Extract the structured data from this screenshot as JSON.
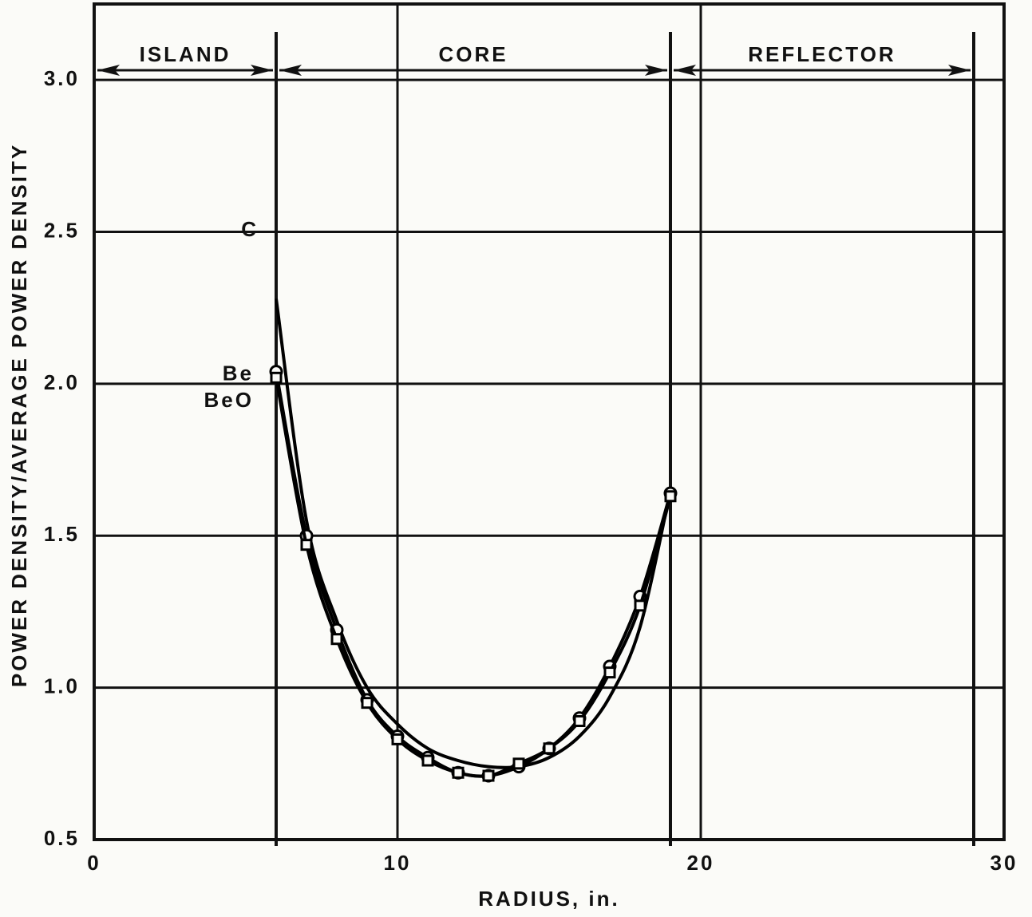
{
  "chart_data": {
    "type": "line",
    "x_label": "RADIUS, in.",
    "y_label": "POWER DENSITY/AVERAGE POWER DENSITY",
    "xlim": [
      0,
      30
    ],
    "ylim": [
      0.5,
      3.25
    ],
    "xticks": [
      0,
      10,
      20,
      30
    ],
    "yticks": [
      0.5,
      {
        "value": 1,
        "label": "1.0"
      },
      1.5,
      {
        "value": 2,
        "label": "2.0"
      },
      2.5,
      {
        "value": 3,
        "label": "3.0"
      }
    ],
    "grid": true,
    "regions": [
      {
        "label": "ISLAND",
        "start": 0,
        "end": 6
      },
      {
        "label": "CORE",
        "start": 6,
        "end": 19
      },
      {
        "label": "REFLECTOR",
        "start": 19,
        "end": 29
      }
    ],
    "x": [
      6,
      7,
      8,
      9,
      10,
      11,
      12,
      13,
      14,
      15,
      16,
      17,
      18,
      19
    ],
    "series": [
      {
        "name": "C",
        "color": "#000000",
        "marker": "none",
        "values": [
          2.28,
          1.55,
          1.22,
          1.0,
          0.88,
          0.8,
          0.76,
          0.74,
          0.74,
          0.77,
          0.84,
          0.97,
          1.2,
          1.65
        ]
      },
      {
        "name": "Be",
        "color": "#000000",
        "marker": "circle",
        "values": [
          2.04,
          1.5,
          1.19,
          0.96,
          0.84,
          0.77,
          0.72,
          0.71,
          0.74,
          0.8,
          0.9,
          1.07,
          1.3,
          1.64
        ]
      },
      {
        "name": "BeO",
        "color": "#000000",
        "marker": "square",
        "values": [
          2.02,
          1.47,
          1.16,
          0.95,
          0.83,
          0.76,
          0.72,
          0.71,
          0.75,
          0.8,
          0.89,
          1.05,
          1.27,
          1.63
        ]
      }
    ]
  }
}
